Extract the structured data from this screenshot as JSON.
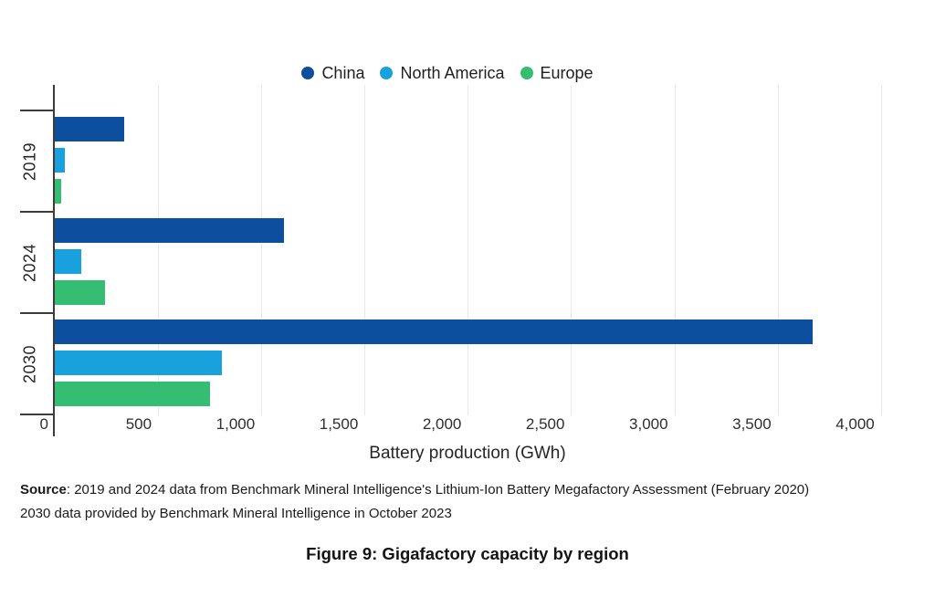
{
  "figure": {
    "caption": "Figure 9: Gigafactory capacity by region",
    "source_label": "Source",
    "source_line1_rest": ": 2019 and 2024 data from Benchmark Mineral Intelligence's Lithium-Ion Battery Megafactory Assessment (February 2020)",
    "source_line2": "2030 data provided by Benchmark Mineral Intelligence in October 2023"
  },
  "chart_data": {
    "type": "bar",
    "orientation": "horizontal",
    "title": "",
    "xlabel": "Battery production (GWh)",
    "ylabel": "",
    "categories": [
      "2019",
      "2024",
      "2030"
    ],
    "series": [
      {
        "name": "China",
        "color": "#0b4f9e",
        "values": [
          335,
          1110,
          3670
        ]
      },
      {
        "name": "North America",
        "color": "#18a1dd",
        "values": [
          50,
          130,
          810
        ]
      },
      {
        "name": "Europe",
        "color": "#35bd74",
        "values": [
          30,
          245,
          750
        ]
      }
    ],
    "x_ticks": [
      0,
      500,
      1000,
      1500,
      2000,
      2500,
      3000,
      3500,
      4000
    ],
    "x_tick_labels": [
      "0",
      "500",
      "1,000",
      "1,500",
      "2,000",
      "2,500",
      "3,000",
      "3,500",
      "4,000"
    ],
    "xlim": [
      0,
      4200
    ],
    "grid": true,
    "legend_position": "top",
    "colors": {
      "grid": "#e8e8e8",
      "axis": "#3c3c3c"
    }
  }
}
